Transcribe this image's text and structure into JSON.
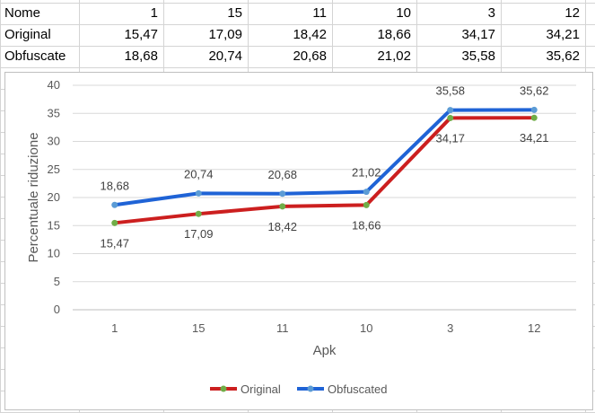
{
  "table": {
    "rows": [
      {
        "label": "Nome",
        "values": [
          "1",
          "15",
          "11",
          "10",
          "3",
          "12"
        ]
      },
      {
        "label": "Original",
        "values": [
          "15,47",
          "17,09",
          "18,42",
          "18,66",
          "34,17",
          "34,21"
        ]
      },
      {
        "label": "Obfuscate",
        "values": [
          "18,68",
          "20,74",
          "20,68",
          "21,02",
          "35,58",
          "35,62"
        ]
      }
    ]
  },
  "chart_data": {
    "type": "line",
    "categories": [
      "1",
      "15",
      "11",
      "10",
      "3",
      "12"
    ],
    "series": [
      {
        "name": "Original",
        "values": [
          15.47,
          17.09,
          18.42,
          18.66,
          34.17,
          34.21
        ],
        "labels": [
          "15,47",
          "17,09",
          "18,42",
          "18,66",
          "34,17",
          "34,21"
        ],
        "label_position": "below",
        "color": "#cc1f1f",
        "marker_color": "#70ad47"
      },
      {
        "name": "Obfuscated",
        "values": [
          18.68,
          20.74,
          20.68,
          21.02,
          35.58,
          35.62
        ],
        "labels": [
          "18,68",
          "20,74",
          "20,68",
          "21,02",
          "35,58",
          "35,62"
        ],
        "label_position": "above",
        "color": "#1f63d6",
        "marker_color": "#5b9bd5"
      }
    ],
    "title": "",
    "xlabel": "Apk",
    "ylabel": "Percentuale riduzione",
    "ylim": [
      0,
      40
    ],
    "yticks": [
      "0",
      "5",
      "10",
      "15",
      "20",
      "25",
      "30",
      "35",
      "40"
    ],
    "grid": true,
    "legend": "bottom"
  }
}
